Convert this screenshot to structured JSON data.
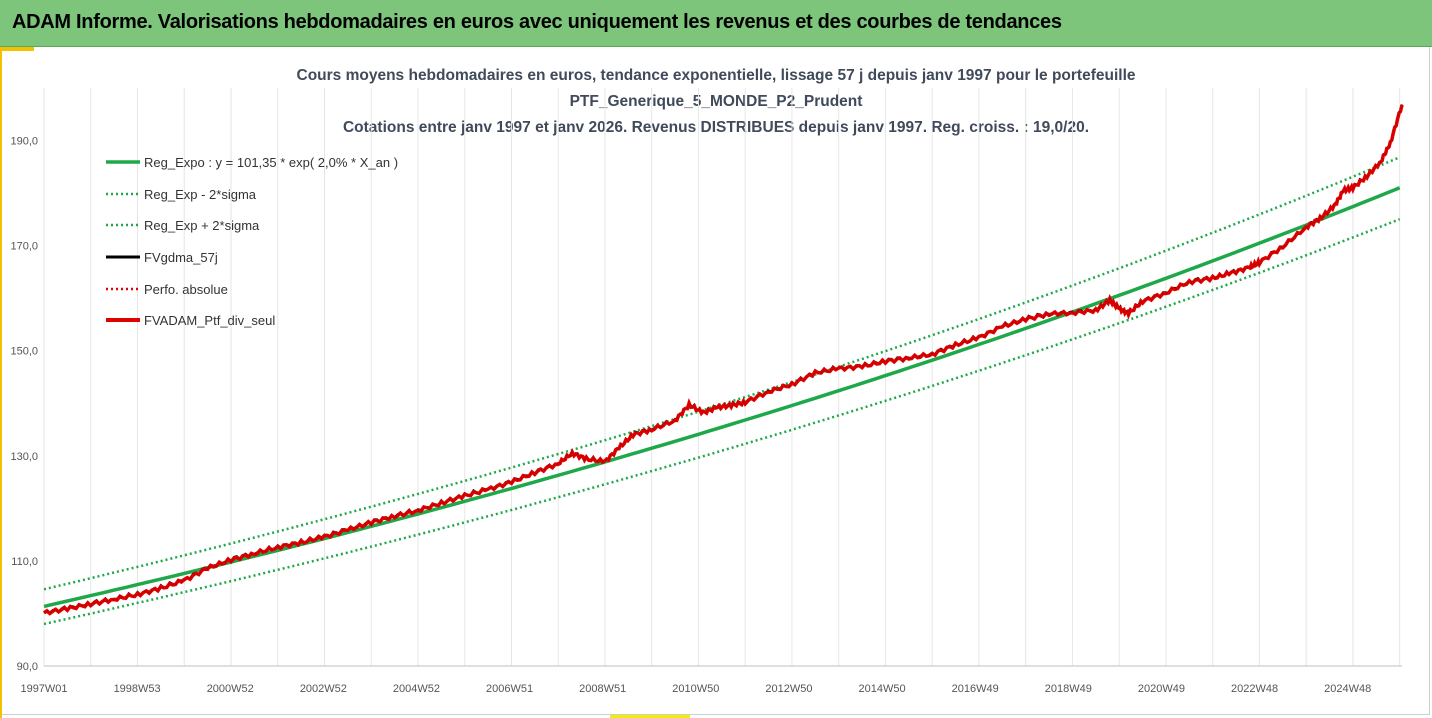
{
  "banner": {
    "title": "ADAM Informe. Valorisations hebdomadaires en euros avec uniquement les revenus et des courbes de tendances"
  },
  "chart_data": {
    "type": "line",
    "title_lines": [
      "Cours moyens hebdomadaires  en euros, tendance exponentielle, lissage 57 j depuis janv 1997 pour le portefeuille",
      "PTF_Generique_5_MONDE_P2_Prudent",
      "Cotations entre janv 1997 et janv 2026. Revenus DISTRIBUES depuis janv 1997. Reg. croiss. : 19,0/20."
    ],
    "xlabel": "",
    "ylabel": "",
    "x_tick_labels": [
      "1997W01",
      "1998W53",
      "2000W52",
      "2002W52",
      "2004W52",
      "2006W51",
      "2008W51",
      "2010W50",
      "2012W50",
      "2014W50",
      "2016W49",
      "2018W49",
      "2020W49",
      "2022W48",
      "2024W48"
    ],
    "x_range_years": [
      1997.0,
      2026.05
    ],
    "ylim": [
      90,
      200
    ],
    "y_ticks": [
      90,
      110,
      130,
      150,
      170,
      190
    ],
    "y_tick_labels": [
      "90,0",
      "110,0",
      "130,0",
      "150,0",
      "170,0",
      "190,0"
    ],
    "grid": "vertical",
    "legend_position": "top-left",
    "colors": {
      "reg_expo": "#1ea84a",
      "reg_bands": "#1ea84a",
      "fvgdma": "#000000",
      "perfo": "#e00000",
      "fvadam": "#e00000"
    },
    "series": [
      {
        "name": "Reg_Expo : y = 101,35 * exp( 2,0% *  X_an )",
        "style": "solid-green",
        "formula": "101.35*exp(0.02*t)"
      },
      {
        "name": "Reg_Exp - 2*sigma",
        "style": "dotted-green",
        "formula": "98.0*exp(0.02*t)"
      },
      {
        "name": "Reg_Exp + 2*sigma",
        "style": "dotted-green",
        "formula": "104.6*exp(0.02*t)"
      },
      {
        "name": "FVgdma_57j",
        "style": "solid-black"
      },
      {
        "name": "Perfo. absolue",
        "style": "dotted-red"
      },
      {
        "name": "FVADAM_Ptf_div_seul",
        "style": "solid-red-thick",
        "x": [
          1997.0,
          1997.5,
          1998.0,
          1998.5,
          1999.0,
          1999.5,
          2000.0,
          2000.5,
          2001.0,
          2001.5,
          2002.0,
          2002.5,
          2003.0,
          2003.5,
          2004.0,
          2004.5,
          2005.0,
          2005.5,
          2006.0,
          2006.5,
          2007.0,
          2007.5,
          2008.0,
          2008.3,
          2008.6,
          2009.0,
          2009.3,
          2009.6,
          2010.0,
          2010.5,
          2010.8,
          2011.1,
          2011.4,
          2011.7,
          2012.0,
          2012.5,
          2013.0,
          2013.5,
          2014.0,
          2014.5,
          2015.0,
          2015.5,
          2016.0,
          2016.5,
          2017.0,
          2017.5,
          2018.0,
          2018.5,
          2019.0,
          2019.5,
          2019.8,
          2020.0,
          2020.2,
          2020.5,
          2021.0,
          2021.5,
          2022.0,
          2022.4,
          2022.8,
          2023.0,
          2023.5,
          2024.0,
          2024.3,
          2024.6,
          2024.8,
          2025.0,
          2025.3,
          2025.6,
          2025.8,
          2026.05
        ],
        "y": [
          100.1,
          100.9,
          101.8,
          102.7,
          103.6,
          104.8,
          106.3,
          108.6,
          110.2,
          111.4,
          112.6,
          113.5,
          114.6,
          115.9,
          117.3,
          118.5,
          119.6,
          121.0,
          122.4,
          123.6,
          125.0,
          126.8,
          128.5,
          130.5,
          129.4,
          128.9,
          131.5,
          134.0,
          135.0,
          136.7,
          139.7,
          138.2,
          139.2,
          139.6,
          140.2,
          142.2,
          143.6,
          145.8,
          146.6,
          147.0,
          148.0,
          148.6,
          149.3,
          151.1,
          152.5,
          154.6,
          156.0,
          157.0,
          157.2,
          157.7,
          159.6,
          158.0,
          157.1,
          159.4,
          161.0,
          163.1,
          163.8,
          164.8,
          165.9,
          166.8,
          169.8,
          173.5,
          175.2,
          177.5,
          180.5,
          181.0,
          183.2,
          186.0,
          189.5,
          196.8
        ]
      }
    ]
  }
}
